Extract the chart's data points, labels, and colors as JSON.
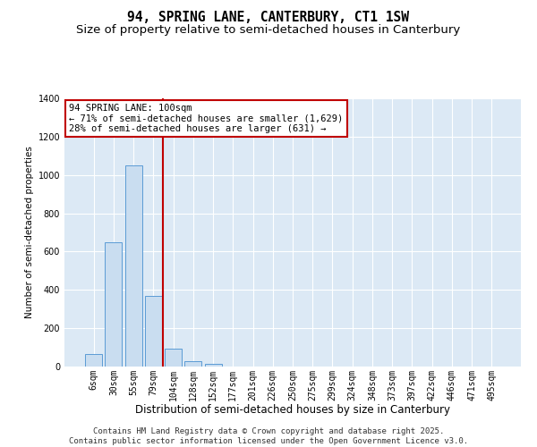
{
  "title": "94, SPRING LANE, CANTERBURY, CT1 1SW",
  "subtitle": "Size of property relative to semi-detached houses in Canterbury",
  "xlabel": "Distribution of semi-detached houses by size in Canterbury",
  "ylabel": "Number of semi-detached properties",
  "bar_labels": [
    "6sqm",
    "30sqm",
    "55sqm",
    "79sqm",
    "104sqm",
    "128sqm",
    "152sqm",
    "177sqm",
    "201sqm",
    "226sqm",
    "250sqm",
    "275sqm",
    "299sqm",
    "324sqm",
    "348sqm",
    "373sqm",
    "397sqm",
    "422sqm",
    "446sqm",
    "471sqm",
    "495sqm"
  ],
  "bar_values": [
    65,
    650,
    1050,
    370,
    95,
    30,
    13,
    2,
    0,
    0,
    0,
    0,
    0,
    0,
    0,
    0,
    0,
    0,
    0,
    0,
    0
  ],
  "bar_color": "#c9ddf0",
  "bar_edge_color": "#5b9bd5",
  "vline_color": "#c00000",
  "annotation_text_line1": "94 SPRING LANE: 100sqm",
  "annotation_text_line2": "← 71% of semi-detached houses are smaller (1,629)",
  "annotation_text_line3": "28% of semi-detached houses are larger (631) →",
  "annotation_box_edge_color": "#c00000",
  "ylim": [
    0,
    1400
  ],
  "yticks": [
    0,
    200,
    400,
    600,
    800,
    1000,
    1200,
    1400
  ],
  "plot_bg_color": "#dce9f5",
  "grid_color": "#ffffff",
  "footer_line1": "Contains HM Land Registry data © Crown copyright and database right 2025.",
  "footer_line2": "Contains public sector information licensed under the Open Government Licence v3.0.",
  "title_fontsize": 10.5,
  "subtitle_fontsize": 9.5,
  "xlabel_fontsize": 8.5,
  "ylabel_fontsize": 7.5,
  "tick_fontsize": 7,
  "annotation_fontsize": 7.5,
  "footer_fontsize": 6.5,
  "vline_x_index": 3.5
}
